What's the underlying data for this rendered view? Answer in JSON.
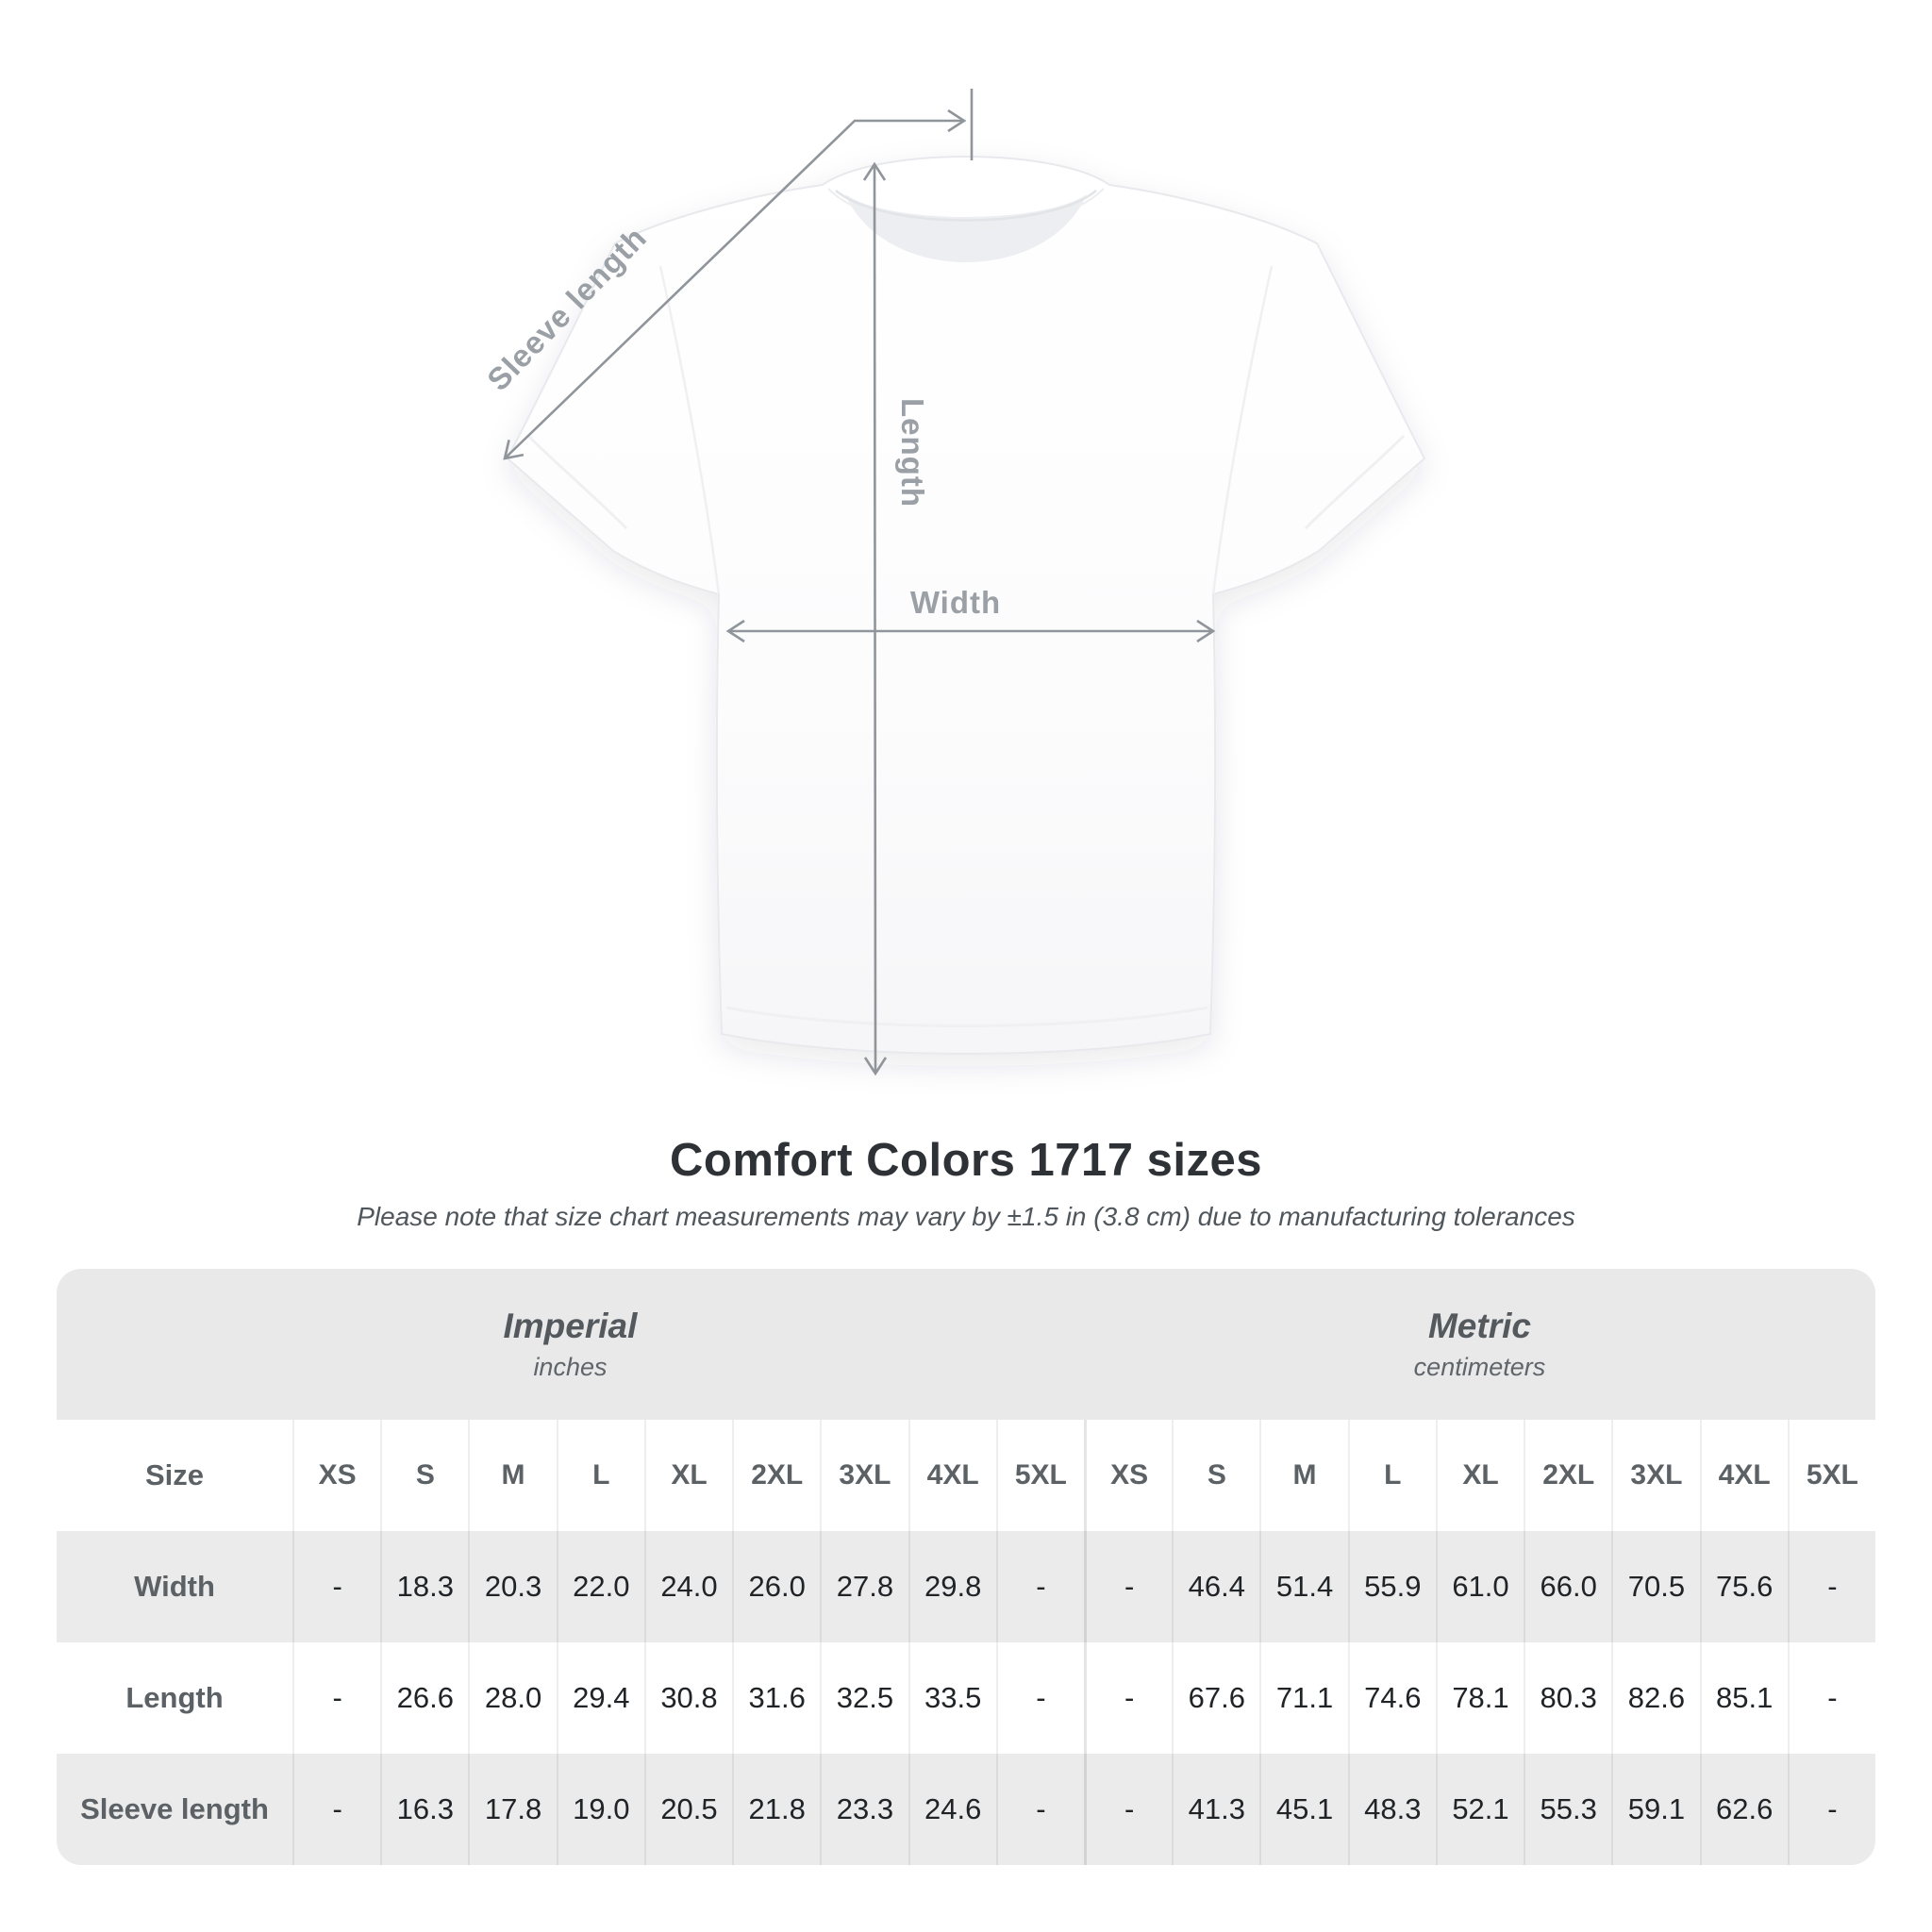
{
  "diagram": {
    "labels": {
      "sleeve": "Sleeve length",
      "length": "Length",
      "width": "Width"
    }
  },
  "heading": {
    "title": "Comfort Colors 1717 sizes",
    "subtitle": "Please note that size chart measurements may vary by ±1.5 in (3.8 cm) due to manufacturing tolerances"
  },
  "table": {
    "size_label": "Size",
    "unit_groups": [
      {
        "title": "Imperial",
        "subtitle": "inches"
      },
      {
        "title": "Metric",
        "subtitle": "centimeters"
      }
    ],
    "sizes": [
      "XS",
      "S",
      "M",
      "L",
      "XL",
      "2XL",
      "3XL",
      "4XL",
      "5XL"
    ],
    "rows": [
      {
        "label": "Width",
        "imperial": [
          "-",
          "18.3",
          "20.3",
          "22.0",
          "24.0",
          "26.0",
          "27.8",
          "29.8",
          "-"
        ],
        "metric": [
          "-",
          "46.4",
          "51.4",
          "55.9",
          "61.0",
          "66.0",
          "70.5",
          "75.6",
          "-"
        ]
      },
      {
        "label": "Length",
        "imperial": [
          "-",
          "26.6",
          "28.0",
          "29.4",
          "30.8",
          "31.6",
          "32.5",
          "33.5",
          "-"
        ],
        "metric": [
          "-",
          "67.6",
          "71.1",
          "74.6",
          "78.1",
          "80.3",
          "82.6",
          "85.1",
          "-"
        ]
      },
      {
        "label": "Sleeve length",
        "imperial": [
          "-",
          "16.3",
          "17.8",
          "19.0",
          "20.5",
          "21.8",
          "23.3",
          "24.6",
          "-"
        ],
        "metric": [
          "-",
          "41.3",
          "45.1",
          "48.3",
          "52.1",
          "55.3",
          "59.1",
          "62.6",
          "-"
        ]
      }
    ]
  },
  "colors": {
    "annotation_line": "#8f959a",
    "annotation_text": "#9aa0a5",
    "band_gray": "#e9e9ea",
    "row_gray": "#ebebec",
    "title_text": "#2e3236",
    "label_text": "#5c6165",
    "value_text": "#212427"
  },
  "chart_data": {
    "type": "table",
    "title": "Comfort Colors 1717 sizes",
    "note": "Please note that size chart measurements may vary by ±1.5 in (3.8 cm) due to manufacturing tolerances",
    "column_groups": [
      "Imperial (inches)",
      "Metric (centimeters)"
    ],
    "columns": [
      "Size",
      "XS",
      "S",
      "M",
      "L",
      "XL",
      "2XL",
      "3XL",
      "4XL",
      "5XL",
      "XS",
      "S",
      "M",
      "L",
      "XL",
      "2XL",
      "3XL",
      "4XL",
      "5XL"
    ],
    "rows": [
      [
        "Width",
        "-",
        "18.3",
        "20.3",
        "22.0",
        "24.0",
        "26.0",
        "27.8",
        "29.8",
        "-",
        "-",
        "46.4",
        "51.4",
        "55.9",
        "61.0",
        "66.0",
        "70.5",
        "75.6",
        "-"
      ],
      [
        "Length",
        "-",
        "26.6",
        "28.0",
        "29.4",
        "30.8",
        "31.6",
        "32.5",
        "33.5",
        "-",
        "-",
        "67.6",
        "71.1",
        "74.6",
        "78.1",
        "80.3",
        "82.6",
        "85.1",
        "-"
      ],
      [
        "Sleeve length",
        "-",
        "16.3",
        "17.8",
        "19.0",
        "20.5",
        "21.8",
        "23.3",
        "24.6",
        "-",
        "-",
        "41.3",
        "45.1",
        "48.3",
        "52.1",
        "55.3",
        "59.1",
        "62.6",
        "-"
      ]
    ]
  }
}
